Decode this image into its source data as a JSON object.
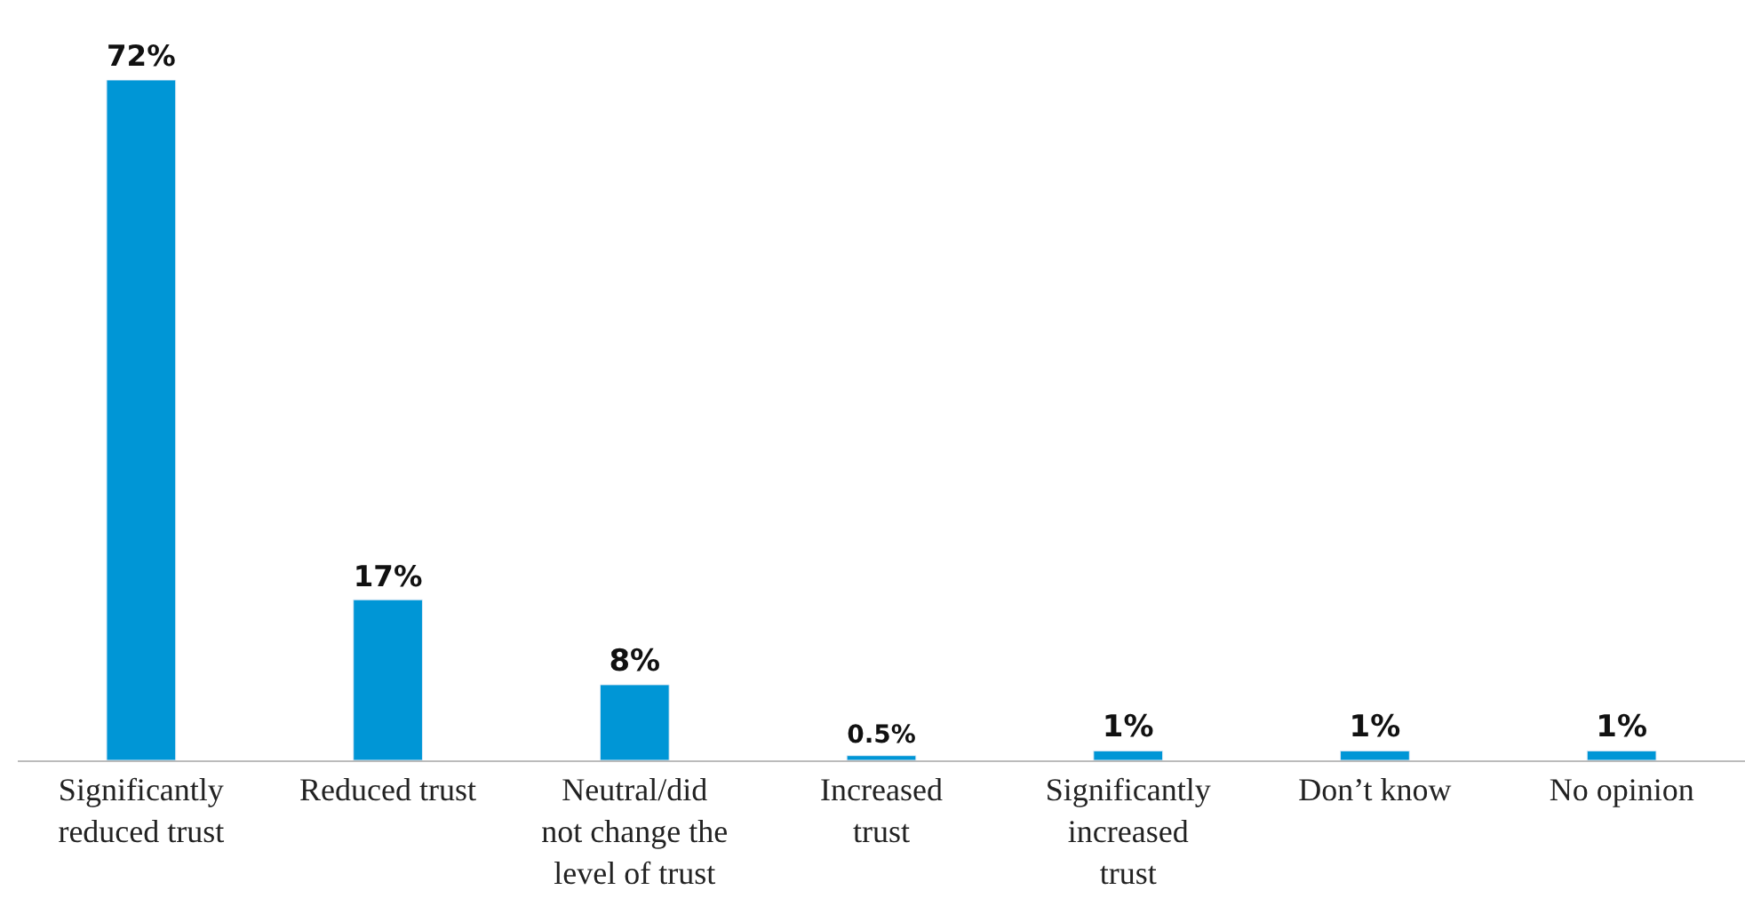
{
  "chart_data": {
    "type": "bar",
    "categories": [
      "Significantly reduced trust",
      "Reduced trust",
      "Neutral/did not change the level of trust",
      "Increased trust",
      "Significantly increased trust",
      "Don’t know",
      "No opinion"
    ],
    "values": [
      72,
      17,
      8,
      0.5,
      1,
      1,
      1
    ],
    "value_labels": [
      "72%",
      "17%",
      "8%",
      "0.5%",
      "1%",
      "1%",
      "1%"
    ],
    "color": "#0096d6",
    "tick_labels": "x"
  }
}
